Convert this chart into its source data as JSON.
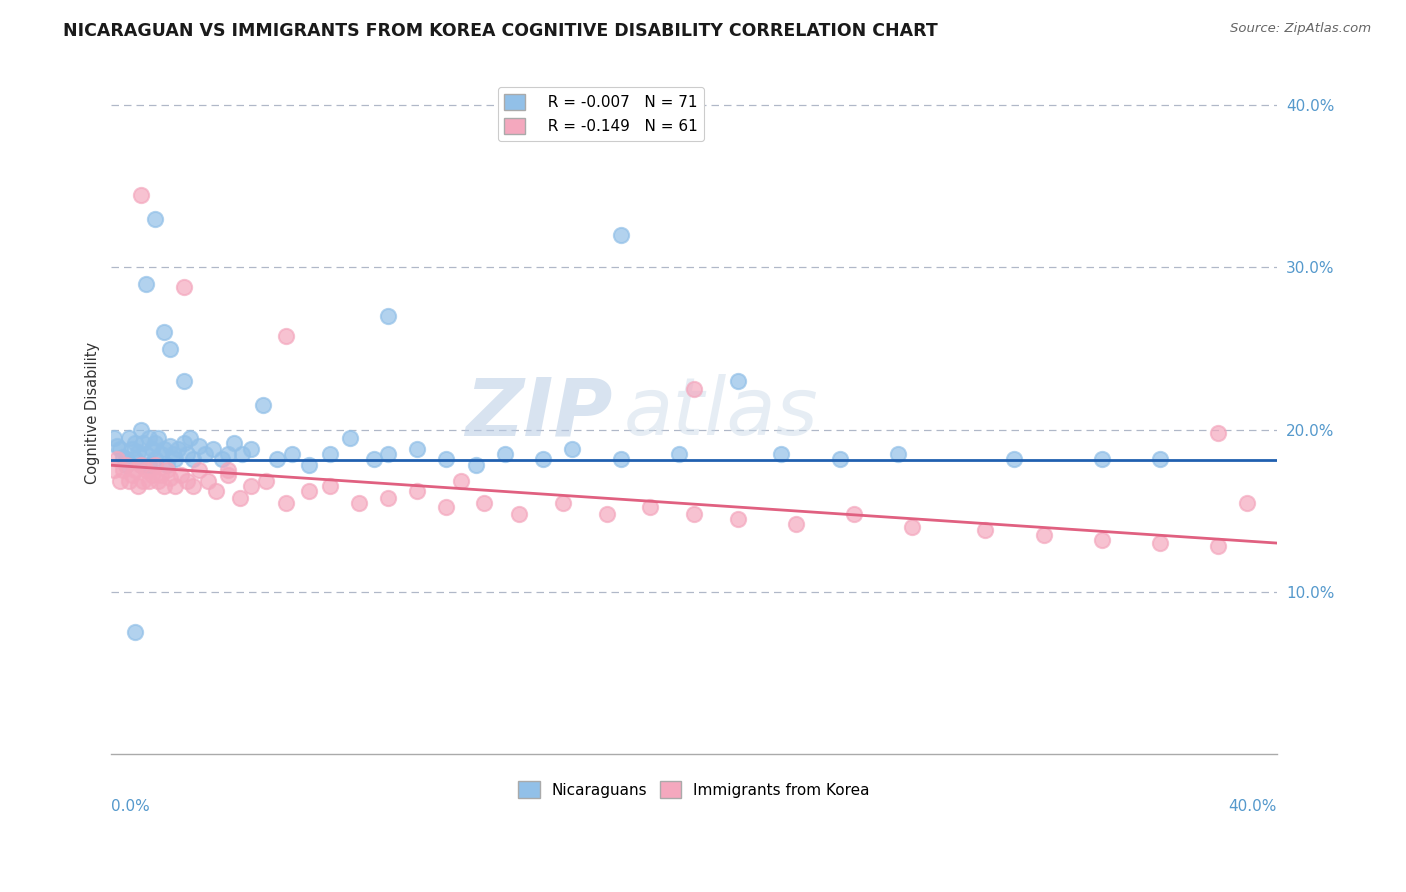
{
  "title": "NICARAGUAN VS IMMIGRANTS FROM KOREA COGNITIVE DISABILITY CORRELATION CHART",
  "source_text": "Source: ZipAtlas.com",
  "ylabel": "Cognitive Disability",
  "right_yticks": [
    "10.0%",
    "20.0%",
    "30.0%",
    "40.0%"
  ],
  "right_ytick_values": [
    0.1,
    0.2,
    0.3,
    0.4
  ],
  "xmin": 0.0,
  "xmax": 0.4,
  "ymin": 0.0,
  "ymax": 0.42,
  "legend_r1": "R = -0.007",
  "legend_n1": "N = 71",
  "legend_r2": "R = -0.149",
  "legend_n2": "N = 61",
  "color_blue": "#92C0E8",
  "color_pink": "#F4A8BE",
  "line_color_blue": "#2060B0",
  "line_color_pink": "#E06080",
  "blue_line_y0": 0.181,
  "blue_line_y1": 0.181,
  "pink_line_y0": 0.178,
  "pink_line_y1": 0.13,
  "blue_scatter_x": [
    0.001,
    0.002,
    0.003,
    0.004,
    0.005,
    0.005,
    0.006,
    0.007,
    0.008,
    0.008,
    0.009,
    0.01,
    0.01,
    0.011,
    0.012,
    0.013,
    0.013,
    0.014,
    0.015,
    0.015,
    0.016,
    0.017,
    0.018,
    0.019,
    0.02,
    0.021,
    0.022,
    0.023,
    0.025,
    0.026,
    0.027,
    0.028,
    0.03,
    0.032,
    0.035,
    0.038,
    0.04,
    0.042,
    0.045,
    0.048,
    0.052,
    0.057,
    0.062,
    0.068,
    0.075,
    0.082,
    0.09,
    0.095,
    0.105,
    0.115,
    0.125,
    0.135,
    0.148,
    0.158,
    0.175,
    0.195,
    0.215,
    0.23,
    0.25,
    0.27,
    0.095,
    0.175,
    0.31,
    0.34,
    0.36,
    0.008,
    0.012,
    0.015,
    0.018,
    0.02,
    0.025
  ],
  "blue_scatter_y": [
    0.195,
    0.19,
    0.188,
    0.183,
    0.182,
    0.178,
    0.195,
    0.188,
    0.192,
    0.182,
    0.186,
    0.2,
    0.178,
    0.192,
    0.185,
    0.195,
    0.178,
    0.188,
    0.192,
    0.182,
    0.195,
    0.185,
    0.188,
    0.178,
    0.19,
    0.185,
    0.182,
    0.188,
    0.192,
    0.185,
    0.195,
    0.182,
    0.19,
    0.185,
    0.188,
    0.182,
    0.185,
    0.192,
    0.185,
    0.188,
    0.215,
    0.182,
    0.185,
    0.178,
    0.185,
    0.195,
    0.182,
    0.185,
    0.188,
    0.182,
    0.178,
    0.185,
    0.182,
    0.188,
    0.182,
    0.185,
    0.23,
    0.185,
    0.182,
    0.185,
    0.27,
    0.32,
    0.182,
    0.182,
    0.182,
    0.075,
    0.29,
    0.33,
    0.26,
    0.25,
    0.23
  ],
  "pink_scatter_x": [
    0.001,
    0.002,
    0.003,
    0.004,
    0.005,
    0.006,
    0.007,
    0.008,
    0.009,
    0.01,
    0.011,
    0.012,
    0.013,
    0.014,
    0.015,
    0.016,
    0.017,
    0.018,
    0.019,
    0.02,
    0.022,
    0.024,
    0.026,
    0.028,
    0.03,
    0.033,
    0.036,
    0.04,
    0.044,
    0.048,
    0.053,
    0.06,
    0.068,
    0.075,
    0.085,
    0.095,
    0.105,
    0.115,
    0.128,
    0.14,
    0.155,
    0.17,
    0.185,
    0.2,
    0.215,
    0.235,
    0.255,
    0.275,
    0.3,
    0.32,
    0.34,
    0.36,
    0.38,
    0.01,
    0.025,
    0.04,
    0.06,
    0.12,
    0.2,
    0.38,
    0.39
  ],
  "pink_scatter_y": [
    0.175,
    0.182,
    0.168,
    0.175,
    0.178,
    0.168,
    0.172,
    0.175,
    0.165,
    0.178,
    0.168,
    0.175,
    0.168,
    0.172,
    0.178,
    0.168,
    0.172,
    0.165,
    0.175,
    0.17,
    0.165,
    0.172,
    0.168,
    0.165,
    0.175,
    0.168,
    0.162,
    0.172,
    0.158,
    0.165,
    0.168,
    0.155,
    0.162,
    0.165,
    0.155,
    0.158,
    0.162,
    0.152,
    0.155,
    0.148,
    0.155,
    0.148,
    0.152,
    0.148,
    0.145,
    0.142,
    0.148,
    0.14,
    0.138,
    0.135,
    0.132,
    0.13,
    0.128,
    0.345,
    0.288,
    0.175,
    0.258,
    0.168,
    0.225,
    0.198,
    0.155
  ]
}
